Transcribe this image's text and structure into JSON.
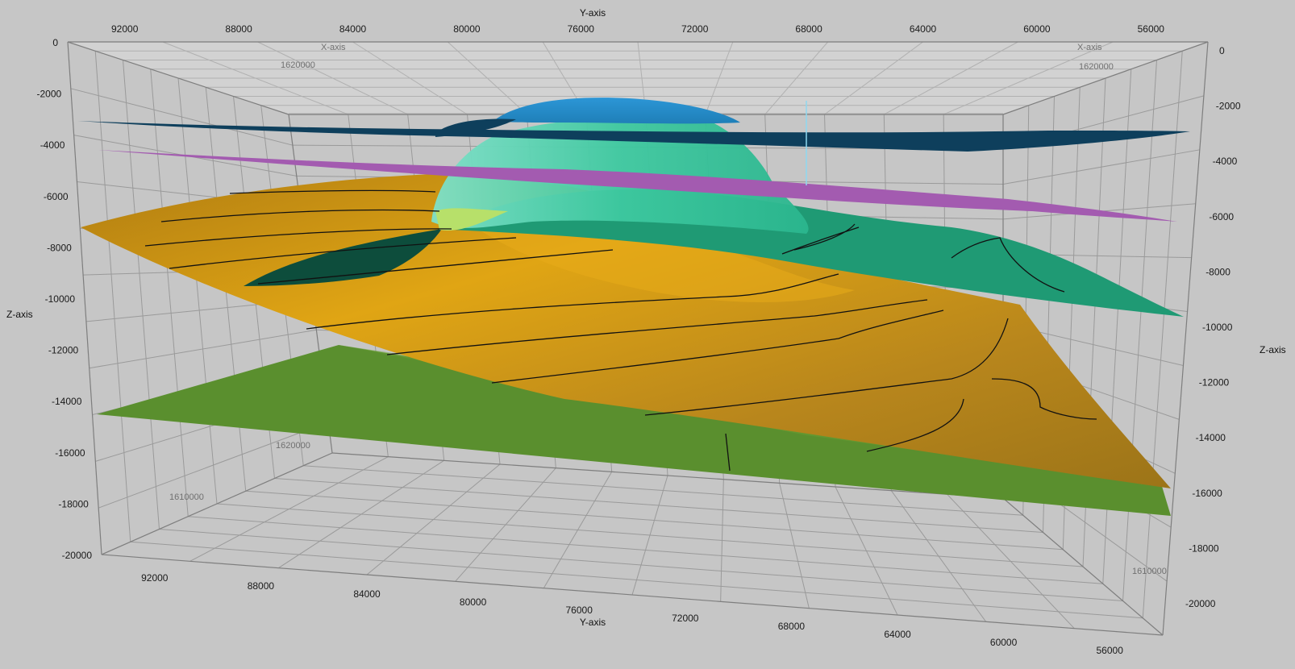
{
  "chart_data": {
    "type": "3d-surface",
    "axis_titles": {
      "y_top": "Y-axis",
      "y_bottom": "Y-axis",
      "z_left": "Z-axis",
      "z_right": "Z-axis",
      "x_back": "X-axis",
      "x_back_right": "X-axis"
    },
    "y_ticks_top": [
      "92000",
      "88000",
      "84000",
      "80000",
      "76000",
      "72000",
      "68000",
      "64000",
      "60000",
      "56000"
    ],
    "y_ticks_bottom": [
      "92000",
      "88000",
      "84000",
      "80000",
      "76000",
      "72000",
      "68000",
      "64000",
      "60000",
      "56000"
    ],
    "z_ticks_left": [
      "0",
      "-2000",
      "-4000",
      "-6000",
      "-8000",
      "-10000",
      "-12000",
      "-14000",
      "-16000",
      "-18000",
      "-20000"
    ],
    "z_ticks_right": [
      "0",
      "-2000",
      "-4000",
      "-6000",
      "-8000",
      "-10000",
      "-12000",
      "-14000",
      "-16000",
      "-18000",
      "-20000"
    ],
    "x_ticks_floor": [
      "1620000",
      "1610000"
    ],
    "x_ticks_floor_right": [
      "1610000"
    ],
    "x_ticks_back": [
      "1620000",
      "1620000"
    ],
    "y_range": [
      94000,
      54000
    ],
    "z_range": [
      0,
      -20000
    ],
    "grid": true,
    "surface_colors": {
      "top_horizon": "#0e3f5c",
      "salt_dome": "#2a8fc9",
      "dome_flank": "#3ec9a0",
      "purple_horizon": "#a35bb0",
      "green_horizon": "#1f9a74",
      "dark_green_wedge": "#0d4d3c",
      "gold_horizon": "#b48418",
      "olive_horizon": "#5a8f2e",
      "contour": "#111111"
    }
  }
}
